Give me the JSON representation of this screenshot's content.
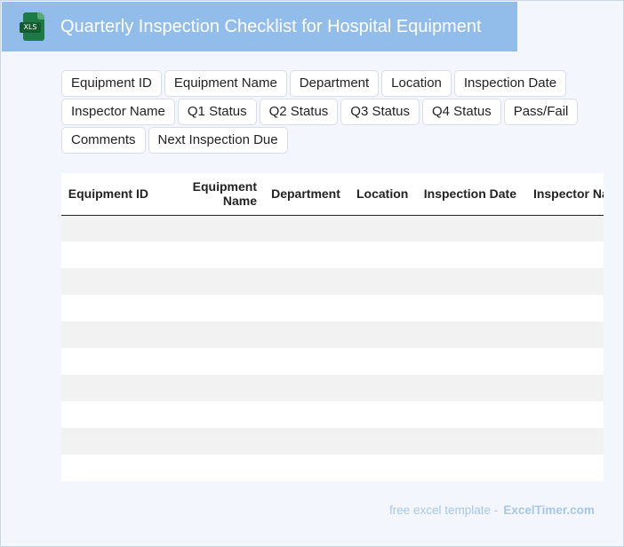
{
  "header": {
    "title": "Quarterly Inspection Checklist for Hospital Equipment",
    "file_icon_label": "XLS",
    "bar_color": "#92bdea"
  },
  "columns": [
    "Equipment ID",
    "Equipment Name",
    "Department",
    "Location",
    "Inspection Date",
    "Inspector Name",
    "Q1 Status",
    "Q2 Status",
    "Q3 Status",
    "Q4 Status",
    "Pass/Fail",
    "Comments",
    "Next Inspection Due"
  ],
  "table": {
    "headers": [
      "Equipment ID",
      "Equipment Name",
      "Department",
      "Location",
      "Inspection Date",
      "Inspector Name"
    ],
    "rows": [
      [
        "",
        "",
        "",
        "",
        "",
        ""
      ],
      [
        "",
        "",
        "",
        "",
        "",
        ""
      ],
      [
        "",
        "",
        "",
        "",
        "",
        ""
      ],
      [
        "",
        "",
        "",
        "",
        "",
        ""
      ],
      [
        "",
        "",
        "",
        "",
        "",
        ""
      ],
      [
        "",
        "",
        "",
        "",
        "",
        ""
      ],
      [
        "",
        "",
        "",
        "",
        "",
        ""
      ],
      [
        "",
        "",
        "",
        "",
        "",
        ""
      ],
      [
        "",
        "",
        "",
        "",
        "",
        ""
      ],
      [
        "",
        "",
        "",
        "",
        "",
        ""
      ]
    ]
  },
  "footer": {
    "prefix": "free excel template -",
    "site": "ExcelTimer.com"
  }
}
